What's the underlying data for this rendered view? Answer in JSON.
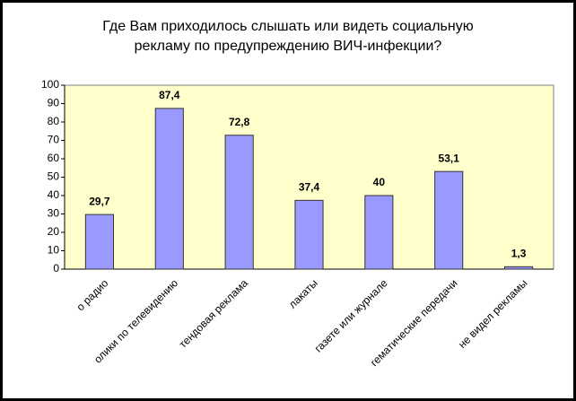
{
  "chart_data": {
    "type": "bar",
    "title": "Где Вам приходилось слышать или видеть социальную",
    "subtitle": "рекламу по предупреждению ВИЧ-инфекции?",
    "categories": [
      "о радио",
      "олики по телевидению",
      "тендовая реклама",
      "лакаты",
      "газете или журнале",
      "гематические передачи",
      "не видел рекламы"
    ],
    "values": [
      29.7,
      87.4,
      72.8,
      37.4,
      40,
      53.1,
      1.3
    ],
    "value_labels": [
      "29,7",
      "87,4",
      "72,8",
      "37,4",
      "40",
      "53,1",
      "1,3"
    ],
    "color": "#9999ff",
    "ylim": [
      0,
      100
    ],
    "yticks": [
      0,
      10,
      20,
      30,
      40,
      50,
      60,
      70,
      80,
      90,
      100
    ]
  }
}
